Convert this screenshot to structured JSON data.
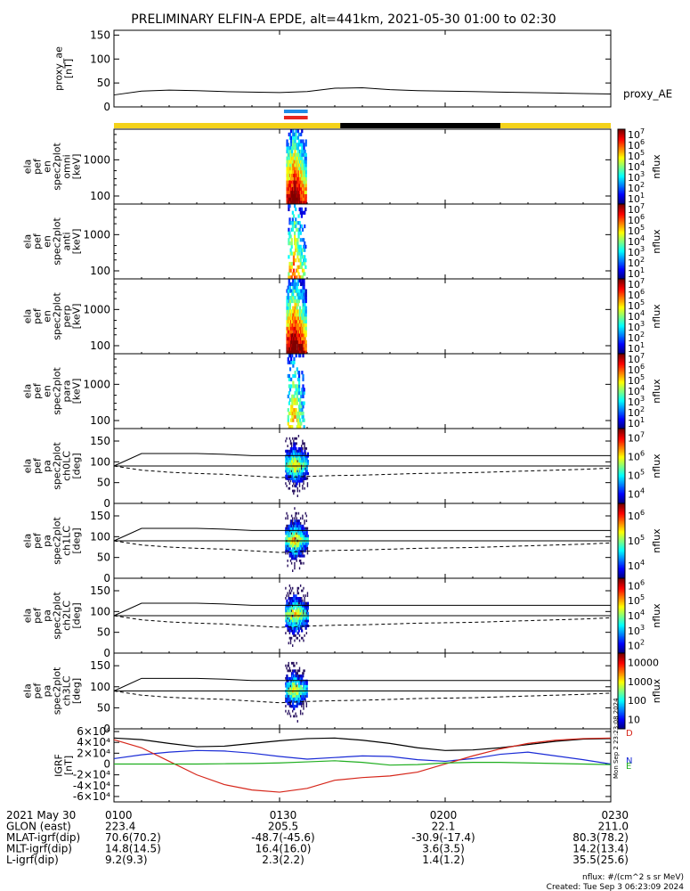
{
  "title": "PRELIMINARY ELFIN-A EPDE, alt=441km, 2021-05-30 01:00 to 02:30",
  "chart_data": [
    {
      "type": "line",
      "name": "proxy_ae",
      "ylabel": [
        "proxy_ae",
        "[nT]"
      ],
      "legend": "proxy_AE",
      "ylim": [
        0,
        160
      ],
      "yticks": [
        "0",
        "50",
        "100",
        "150"
      ],
      "series": [
        {
          "name": "proxy_AE",
          "x_min": [
            0,
            5,
            10,
            15,
            20,
            25,
            30,
            35,
            40,
            45,
            50,
            55,
            60,
            65,
            70,
            75,
            80,
            85,
            90
          ],
          "values": [
            25,
            33,
            35,
            34,
            32,
            31,
            30,
            32,
            39,
            40,
            36,
            34,
            33,
            32,
            31,
            30,
            29,
            28,
            27
          ]
        }
      ]
    },
    {
      "type": "bar",
      "name": "orbit-bar",
      "segments": [
        {
          "from": 0,
          "to": 41,
          "color": "#f4d21a"
        },
        {
          "from": 41,
          "to": 70,
          "color": "#000000"
        },
        {
          "from": 70,
          "to": 90,
          "color": "#f4d21a"
        }
      ],
      "markers": [
        {
          "from": 30.8,
          "to": 35.1,
          "color": "#1e8ce6"
        },
        {
          "from": 30.8,
          "to": 35.1,
          "color": "#e8261e"
        }
      ]
    },
    {
      "type": "heatmap",
      "name": "spec-omni",
      "ylabel": [
        "ela",
        "pef",
        "en",
        "spec2plot",
        "omni",
        "[keV]"
      ],
      "yticks": [
        "100",
        "1000"
      ],
      "ylog": true,
      "ylim": [
        60,
        7000
      ],
      "zlabel": "nflux",
      "ztick_exponents": [
        1,
        2,
        3,
        4,
        5,
        6,
        7
      ],
      "ztick_prefix": "10",
      "t_start": 31.2,
      "t_end": 34.8,
      "density": 0.95,
      "peak": 0.85
    },
    {
      "type": "heatmap",
      "name": "spec-anti",
      "ylabel": [
        "ela",
        "pef",
        "en",
        "spec2plot",
        "anti",
        "[keV]"
      ],
      "yticks": [
        "100",
        "1000"
      ],
      "ylog": true,
      "ylim": [
        60,
        7000
      ],
      "zlabel": "nflux",
      "ztick_exponents": [
        1,
        2,
        3,
        4,
        5,
        6,
        7
      ],
      "ztick_prefix": "10",
      "t_start": 31.5,
      "t_end": 34.6,
      "density": 0.45,
      "peak": 0.55
    },
    {
      "type": "heatmap",
      "name": "spec-perp",
      "ylabel": [
        "ela",
        "pef",
        "en",
        "spec2plot",
        "perp",
        "[keV]"
      ],
      "yticks": [
        "100",
        "1000"
      ],
      "ylog": true,
      "ylim": [
        60,
        7000
      ],
      "zlabel": "nflux",
      "ztick_exponents": [
        1,
        2,
        3,
        4,
        5,
        6,
        7
      ],
      "ztick_prefix": "10",
      "t_start": 31.2,
      "t_end": 34.8,
      "density": 0.95,
      "peak": 0.9
    },
    {
      "type": "heatmap",
      "name": "spec-para",
      "ylabel": [
        "ela",
        "pef",
        "en",
        "spec2plot",
        "para",
        "[keV]"
      ],
      "yticks": [
        "100",
        "1000"
      ],
      "ylog": true,
      "ylim": [
        60,
        7000
      ],
      "zlabel": "nflux",
      "ztick_exponents": [
        1,
        2,
        3,
        4,
        5,
        6,
        7
      ],
      "ztick_prefix": "10",
      "t_start": 31.4,
      "t_end": 34.4,
      "density": 0.4,
      "peak": 0.45
    },
    {
      "type": "heatmap",
      "name": "pa-ch0",
      "ylabel": [
        "ela",
        "pef",
        "pa",
        "spec2plot",
        "ch0LC",
        "[deg]"
      ],
      "yticks": [
        "0",
        "50",
        "100",
        "150"
      ],
      "ylim": [
        0,
        180
      ],
      "zlabel": "nflux",
      "ztick_exponents": [
        4,
        5,
        6,
        7
      ],
      "ztick_prefix": "10",
      "t_start": 31.0,
      "t_end": 35.0,
      "lc": [
        90,
        120,
        120,
        120,
        118,
        115,
        115,
        115,
        115,
        115,
        115,
        115,
        115,
        115,
        115,
        115,
        115,
        115,
        115
      ],
      "lc_dash": [
        90,
        80,
        75,
        72,
        70,
        66,
        62,
        65,
        67,
        68,
        70,
        72,
        73,
        74,
        76,
        78,
        80,
        82,
        85
      ],
      "hline": 90
    },
    {
      "type": "heatmap",
      "name": "pa-ch1",
      "ylabel": [
        "ela",
        "pef",
        "pa",
        "spec2plot",
        "ch1LC",
        "[deg]"
      ],
      "yticks": [
        "0",
        "50",
        "100",
        "150"
      ],
      "ylim": [
        0,
        180
      ],
      "zlabel": "nflux",
      "ztick_exponents": [
        4,
        5,
        6
      ],
      "ztick_prefix": "10",
      "t_start": 31.0,
      "t_end": 35.0,
      "lc": [
        90,
        120,
        120,
        120,
        118,
        115,
        115,
        115,
        115,
        115,
        115,
        115,
        115,
        115,
        115,
        115,
        115,
        115,
        115
      ],
      "lc_dash": [
        90,
        80,
        75,
        72,
        70,
        66,
        62,
        65,
        67,
        68,
        70,
        72,
        73,
        74,
        76,
        78,
        80,
        82,
        85
      ],
      "hline": 90
    },
    {
      "type": "heatmap",
      "name": "pa-ch2",
      "ylabel": [
        "ela",
        "pef",
        "pa",
        "spec2plot",
        "ch2LC",
        "[deg]"
      ],
      "yticks": [
        "0",
        "50",
        "100",
        "150"
      ],
      "ylim": [
        0,
        180
      ],
      "zlabel": "nflux",
      "ztick_exponents": [
        2,
        3,
        4,
        5,
        6
      ],
      "ztick_prefix": "10",
      "t_start": 31.0,
      "t_end": 35.0,
      "lc": [
        90,
        120,
        120,
        120,
        118,
        115,
        115,
        115,
        115,
        115,
        115,
        115,
        115,
        115,
        115,
        115,
        115,
        115,
        115
      ],
      "lc_dash": [
        90,
        80,
        75,
        72,
        70,
        66,
        62,
        65,
        67,
        68,
        70,
        72,
        73,
        74,
        76,
        78,
        80,
        82,
        85
      ],
      "hline": 90
    },
    {
      "type": "heatmap",
      "name": "pa-ch3",
      "ylabel": [
        "ela",
        "pef",
        "pa",
        "spec2plot",
        "ch3LC",
        "[deg]"
      ],
      "yticks": [
        "0",
        "50",
        "100",
        "150"
      ],
      "ylim": [
        0,
        180
      ],
      "zlabel": "nflux",
      "zticks_linear": [
        "10",
        "100",
        "1000",
        "10000"
      ],
      "t_start": 31.0,
      "t_end": 34.8,
      "lc": [
        90,
        120,
        120,
        120,
        118,
        115,
        115,
        115,
        115,
        115,
        115,
        115,
        115,
        115,
        115,
        115,
        115,
        115,
        115
      ],
      "lc_dash": [
        90,
        80,
        75,
        72,
        70,
        66,
        62,
        65,
        67,
        68,
        70,
        72,
        73,
        74,
        76,
        78,
        80,
        82,
        85
      ],
      "hline": 90
    },
    {
      "type": "line",
      "name": "igrf",
      "ylabel": [
        "IGRF",
        "[nT]"
      ],
      "ylim": [
        -70000,
        65000
      ],
      "yticks": [
        "-6×10⁴",
        "-4×10⁴",
        "-2×10⁴",
        "0",
        "2×10⁴",
        "4×10⁴",
        "6×10⁴"
      ],
      "ytick_values": [
        -60000,
        -40000,
        -20000,
        0,
        20000,
        40000,
        60000
      ],
      "right_labels": [
        "D",
        "N",
        "E"
      ],
      "series": [
        {
          "name": "black",
          "color": "#000000",
          "x_min": [
            0,
            5,
            10,
            15,
            20,
            25,
            30,
            35,
            40,
            45,
            50,
            55,
            60,
            65,
            70,
            75,
            80,
            85,
            90
          ],
          "values": [
            48000,
            45000,
            38000,
            32000,
            33000,
            38000,
            43000,
            47000,
            48000,
            44000,
            38000,
            30000,
            25000,
            26000,
            30000,
            36000,
            42000,
            46000,
            47000
          ]
        },
        {
          "name": "blue",
          "color": "#1a2bd6",
          "x_min": [
            0,
            5,
            10,
            15,
            20,
            25,
            30,
            35,
            40,
            45,
            50,
            55,
            60,
            65,
            70,
            75,
            80,
            85,
            90
          ],
          "values": [
            10000,
            17000,
            22000,
            25000,
            24000,
            20000,
            14000,
            9000,
            12000,
            15000,
            14000,
            8000,
            5000,
            10000,
            18000,
            22000,
            15000,
            8000,
            0
          ]
        },
        {
          "name": "red",
          "color": "#d6261a",
          "x_min": [
            0,
            5,
            10,
            15,
            20,
            25,
            30,
            35,
            40,
            45,
            50,
            55,
            60,
            65,
            70,
            75,
            80,
            85,
            90
          ],
          "values": [
            45000,
            30000,
            5000,
            -20000,
            -38000,
            -48000,
            -52000,
            -45000,
            -30000,
            -25000,
            -22000,
            -15000,
            0,
            15000,
            28000,
            38000,
            44000,
            47000,
            48000
          ]
        },
        {
          "name": "green",
          "color": "#1fae1f",
          "x_min": [
            0,
            5,
            10,
            15,
            20,
            25,
            30,
            35,
            40,
            45,
            50,
            55,
            60,
            65,
            70,
            75,
            80,
            85,
            90
          ],
          "values": [
            0,
            0,
            0,
            0,
            500,
            1000,
            2000,
            4000,
            6000,
            3000,
            -2000,
            -1000,
            2000,
            3000,
            3000,
            2000,
            1000,
            0,
            -1000
          ]
        }
      ]
    }
  ],
  "footer": {
    "rows": [
      {
        "label": "2021 May 30",
        "values": [
          "0100",
          "0130",
          "0200",
          "0230"
        ]
      },
      {
        "label": "GLON (east)",
        "values": [
          "223.4",
          "205.5",
          "22.1",
          "211.0"
        ]
      },
      {
        "label": "MLAT-igrf(dip)",
        "values": [
          "70.6(70.2)",
          "-48.7(-45.6)",
          "-30.9(-17.4)",
          "80.3(78.2)"
        ]
      },
      {
        "label": "MLT-igrf(dip)",
        "values": [
          "14.8(14.5)",
          "16.4(16.0)",
          "3.6(3.5)",
          "14.2(13.4)"
        ]
      },
      {
        "label": "L-igrf(dip)",
        "values": [
          "9.2(9.3)",
          "2.3(2.2)",
          "1.4(1.2)",
          "35.5(25.6)"
        ]
      }
    ],
    "units": "nflux: #/(cm^2 s sr MeV)",
    "created": "Created: Tue Sep  3 06:23:09 2024",
    "stamp": "Mon Sep  2 23:23:08 2024"
  }
}
